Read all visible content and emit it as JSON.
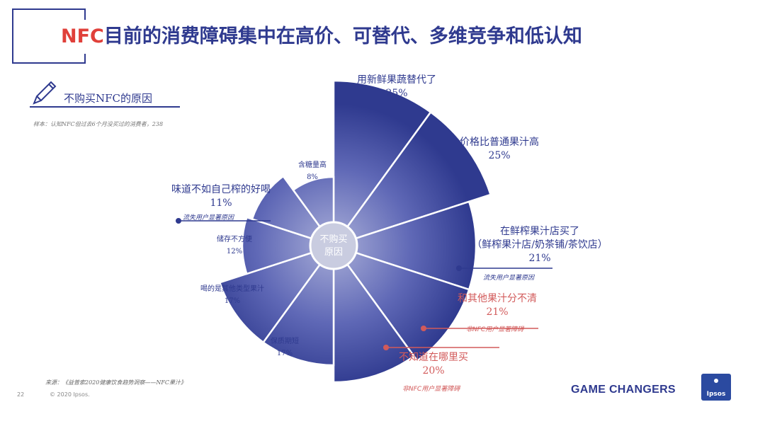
{
  "header": {
    "title_nfc": "NFC",
    "title_rest": "目前的消费障碍集中在高价、可替代、多维竞争和低认知"
  },
  "subhead": "不购买NFC的原因",
  "sample_note": "样本：认知NFC但过去6个月没买过的消费者，238",
  "footer": {
    "source": "来源：《益普索2020健康饮食趋势洞察——NFC果汁》",
    "page_number": "22",
    "copyright": "© 2020 Ipsos.",
    "brand": "GAME CHANGERS",
    "logo_text": "Ipsos"
  },
  "colors": {
    "primary": "#2f3a8f",
    "accent_red": "#d25a5a",
    "center": "#c9cce0"
  },
  "chart_data": {
    "type": "pie",
    "center_label_line1": "不购买",
    "center_label_line2": "原因",
    "categories": [
      "用新鲜果蔬替代了",
      "价格比普通果汁高",
      "在鲜榨果汁店买了",
      "和其他果汁分不清",
      "不知道在哪里买",
      "保质期短",
      "喝的是其他类型果汁",
      "储存不方便",
      "味道不如自己榨的好喝",
      "含糖量高"
    ],
    "values": [
      25,
      25,
      21,
      21,
      20,
      17,
      17,
      12,
      11,
      8
    ],
    "unit": "%",
    "labels": [
      {
        "line1": "用新鲜果蔬替代了",
        "value": "25%"
      },
      {
        "line1": "价格比普通果汁高",
        "value": "25%"
      },
      {
        "line1": "在鲜榨果汁店买了",
        "line2": "（鲜榨果汁店/奶茶铺/茶饮店）",
        "value": "21%",
        "note": "流失用户显著原因"
      },
      {
        "line1": "和其他果汁分不清",
        "value": "21%",
        "note": "非NFC用户显著障碍"
      },
      {
        "line1": "不知道在哪里买",
        "value": "20%",
        "note": "非NFC用户显著障碍"
      },
      {
        "line1": "保质期短",
        "value": "17%"
      },
      {
        "line1": "喝的是其他类型果汁",
        "value": "17%"
      },
      {
        "line1": "储存不方便",
        "value": "12%"
      },
      {
        "line1": "味道不如自己榨的好喝",
        "value": "11%",
        "note": "流失用户显著原因"
      },
      {
        "line1": "含糖量高",
        "value": "8%"
      }
    ]
  }
}
